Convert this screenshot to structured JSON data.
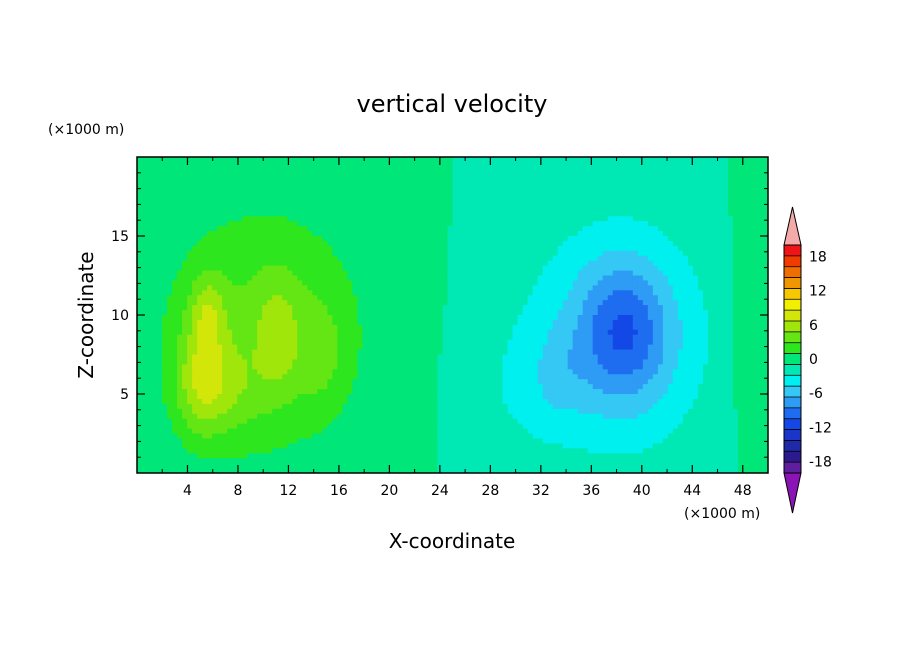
{
  "chart_data": {
    "type": "heatmap",
    "title": "vertical velocity",
    "xlabel": "X-coordinate",
    "ylabel": "Z-coordinate",
    "x_unit": "(×1000 m)",
    "z_unit": "(×1000 m)",
    "xlim": [
      0,
      50
    ],
    "ylim": [
      0,
      20
    ],
    "x_ticks": [
      4,
      8,
      12,
      16,
      20,
      24,
      28,
      32,
      36,
      40,
      44,
      48
    ],
    "y_ticks": [
      5,
      10,
      15
    ],
    "colorbar": {
      "levels": [
        -20,
        -18,
        -16,
        -14,
        -12,
        -10,
        -8,
        -6,
        -4,
        -2,
        0,
        2,
        4,
        6,
        8,
        10,
        12,
        14,
        16,
        18,
        20
      ],
      "tick_labels": [
        "18",
        "12",
        "6",
        "0",
        "-6",
        "-12",
        "-18"
      ],
      "tick_values": [
        18,
        12,
        6,
        0,
        -6,
        -12,
        -18
      ],
      "colors": [
        "#5e1e9e",
        "#2a1a8c",
        "#1e2aa6",
        "#1a35c8",
        "#1448e6",
        "#1e6cf0",
        "#2e9bf5",
        "#35c8f5",
        "#00f0f0",
        "#00e8b4",
        "#00e678",
        "#2ee61e",
        "#64e614",
        "#a0e60a",
        "#d2e60a",
        "#f0f000",
        "#f5c800",
        "#f09600",
        "#f06e00",
        "#f03c00",
        "#f01414"
      ],
      "extend_over_color": "#f5aaaa",
      "extend_under_color": "#8a14b4"
    },
    "features": [
      {
        "x": 10,
        "z": 9,
        "sx": 8.2,
        "sz": 8,
        "amp": 4.6
      },
      {
        "x": 5.2,
        "z": 5.8,
        "sx": 2.1,
        "sz": 3.4,
        "amp": 6.2
      },
      {
        "x": 5.6,
        "z": 10.2,
        "sx": 1.4,
        "sz": 2.4,
        "amp": 4.0
      },
      {
        "x": 11.2,
        "z": 8.6,
        "sx": 1.6,
        "sz": 3.6,
        "amp": 3.2
      },
      {
        "x": 14.6,
        "z": 7.6,
        "sx": 1.8,
        "sz": 3.2,
        "amp": 2.2
      },
      {
        "x": 8.2,
        "z": 5.2,
        "sx": 2.2,
        "sz": 3.0,
        "amp": 1.8
      },
      {
        "x": 38,
        "z": 8.5,
        "sx": 7.5,
        "sz": 7.5,
        "amp": -4.8
      },
      {
        "x": 38.6,
        "z": 9,
        "sx": 3.4,
        "sz": 4.2,
        "amp": -5.8
      },
      {
        "x": 30,
        "z": 5,
        "sx": 4,
        "sz": 4.5,
        "amp": -1.2
      },
      {
        "x": 33.5,
        "z": 6,
        "sx": 2,
        "sz": 2.8,
        "amp": -1.6
      },
      {
        "x": 48.5,
        "z": 10,
        "sx": 1.4,
        "sz": 8,
        "amp": 2.2
      }
    ]
  }
}
